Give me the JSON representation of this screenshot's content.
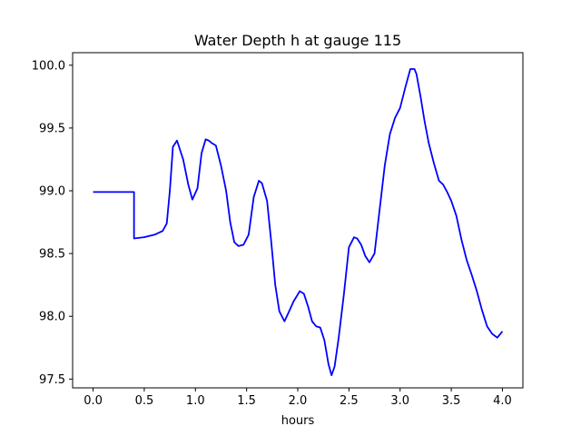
{
  "chart_data": {
    "type": "line",
    "title": "Water Depth h at gauge 115",
    "xlabel": "hours",
    "ylabel": "",
    "xlim": [
      -0.2,
      4.2
    ],
    "ylim": [
      97.43,
      100.1
    ],
    "xticks": [
      0.0,
      0.5,
      1.0,
      1.5,
      2.0,
      2.5,
      3.0,
      3.5,
      4.0
    ],
    "xtick_labels": [
      "0.0",
      "0.5",
      "1.0",
      "1.5",
      "2.0",
      "2.5",
      "3.0",
      "3.5",
      "4.0"
    ],
    "yticks": [
      97.5,
      98.0,
      98.5,
      99.0,
      99.5,
      100.0
    ],
    "ytick_labels": [
      "97.5",
      "98.0",
      "98.5",
      "99.0",
      "99.5",
      "100.0"
    ],
    "grid": false,
    "series": [
      {
        "color": "#0000ff",
        "x": [
          0.0,
          0.4,
          0.4,
          0.5,
          0.6,
          0.68,
          0.72,
          0.75,
          0.78,
          0.82,
          0.88,
          0.93,
          0.97,
          1.02,
          1.06,
          1.1,
          1.13,
          1.16,
          1.2,
          1.25,
          1.3,
          1.34,
          1.38,
          1.42,
          1.47,
          1.52,
          1.57,
          1.62,
          1.65,
          1.7,
          1.74,
          1.78,
          1.82,
          1.87,
          1.91,
          1.96,
          2.02,
          2.06,
          2.1,
          2.14,
          2.18,
          2.22,
          2.26,
          2.3,
          2.33,
          2.36,
          2.4,
          2.45,
          2.5,
          2.55,
          2.58,
          2.62,
          2.66,
          2.7,
          2.75,
          2.8,
          2.85,
          2.9,
          2.95,
          3.0,
          3.05,
          3.1,
          3.14,
          3.16,
          3.2,
          3.24,
          3.28,
          3.33,
          3.38,
          3.42,
          3.46,
          3.5,
          3.55,
          3.6,
          3.65,
          3.7,
          3.75,
          3.8,
          3.85,
          3.9,
          3.95,
          3.98,
          4.0
        ],
        "y": [
          98.99,
          98.99,
          98.62,
          98.63,
          98.65,
          98.68,
          98.74,
          99.0,
          99.35,
          99.4,
          99.25,
          99.05,
          98.93,
          99.02,
          99.3,
          99.41,
          99.4,
          99.38,
          99.36,
          99.2,
          99.0,
          98.75,
          98.59,
          98.56,
          98.57,
          98.65,
          98.95,
          99.08,
          99.06,
          98.92,
          98.6,
          98.25,
          98.04,
          97.96,
          98.03,
          98.12,
          98.2,
          98.18,
          98.08,
          97.96,
          97.92,
          97.91,
          97.81,
          97.62,
          97.53,
          97.6,
          97.83,
          98.17,
          98.55,
          98.63,
          98.62,
          98.57,
          98.48,
          98.43,
          98.5,
          98.85,
          99.2,
          99.45,
          99.58,
          99.66,
          99.82,
          99.97,
          99.97,
          99.93,
          99.75,
          99.55,
          99.38,
          99.22,
          99.08,
          99.05,
          98.99,
          98.92,
          98.8,
          98.61,
          98.45,
          98.33,
          98.2,
          98.05,
          97.92,
          97.86,
          97.83,
          97.86,
          97.88
        ]
      }
    ]
  }
}
